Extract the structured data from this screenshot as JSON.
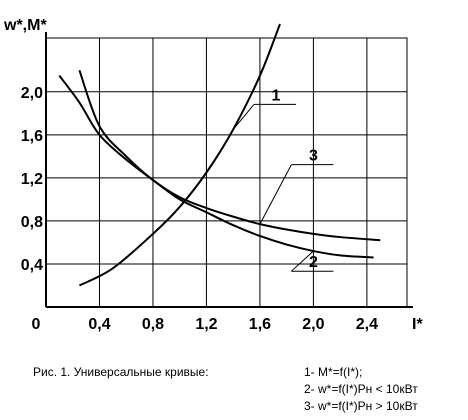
{
  "chart_data": {
    "type": "line",
    "ylabel": "w*,M*",
    "xlabel": "I*",
    "xlim": [
      0,
      2.7
    ],
    "ylim": [
      0,
      2.5
    ],
    "origin_label": "0",
    "x_ticks": [
      {
        "value": 0.4,
        "label": "0,4"
      },
      {
        "value": 0.8,
        "label": "0,8"
      },
      {
        "value": 1.2,
        "label": "1,2"
      },
      {
        "value": 1.6,
        "label": "1,6"
      },
      {
        "value": 2.0,
        "label": "2,0"
      },
      {
        "value": 2.4,
        "label": "2,4"
      }
    ],
    "y_ticks": [
      {
        "value": 0.4,
        "label": "0,4"
      },
      {
        "value": 0.8,
        "label": "0,8"
      },
      {
        "value": 1.2,
        "label": "1,2"
      },
      {
        "value": 1.6,
        "label": "1,6"
      },
      {
        "value": 2.0,
        "label": "2,0"
      }
    ],
    "grid": true,
    "series": [
      {
        "label": "1",
        "x": [
          0.25,
          0.5,
          0.8,
          1.0,
          1.2,
          1.4,
          1.6,
          1.75
        ],
        "y": [
          0.2,
          0.36,
          0.68,
          0.93,
          1.25,
          1.65,
          2.15,
          2.63
        ],
        "label_at": [
          1.72,
          1.92
        ]
      },
      {
        "label": "2",
        "x": [
          0.1,
          0.25,
          0.4,
          0.6,
          0.8,
          1.0,
          1.2,
          1.4,
          1.6,
          1.8,
          2.0,
          2.2,
          2.45
        ],
        "y": [
          2.15,
          1.9,
          1.6,
          1.37,
          1.18,
          1.0,
          0.88,
          0.76,
          0.66,
          0.58,
          0.52,
          0.48,
          0.46
        ],
        "label_at": [
          2.0,
          0.37
        ]
      },
      {
        "label": "3",
        "x": [
          0.25,
          0.4,
          0.6,
          0.8,
          1.0,
          1.2,
          1.4,
          1.6,
          1.8,
          2.0,
          2.2,
          2.5
        ],
        "y": [
          2.2,
          1.68,
          1.4,
          1.18,
          1.02,
          0.92,
          0.84,
          0.77,
          0.72,
          0.68,
          0.65,
          0.62
        ],
        "label_at": [
          2.0,
          1.36
        ]
      }
    ]
  },
  "caption": {
    "title": "Рис. 1. Универсальные кривые:",
    "items": [
      "1- M*=f(I*);",
      "2- w*=f(I*)Pн < 10кВт",
      "3- w*=f(I*)Pн > 10кВт"
    ]
  }
}
